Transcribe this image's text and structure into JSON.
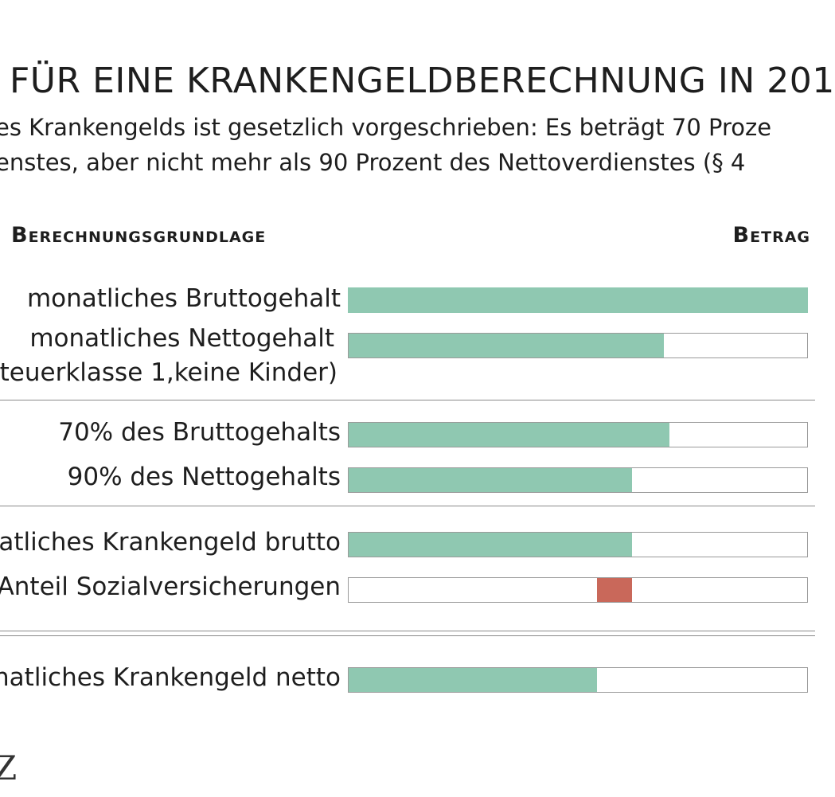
{
  "chart_data": {
    "type": "bar",
    "title": "FÜR EINE KRANKENGELDBERECHNUNG IN 201",
    "subtitle_lines": [
      "es Krankengelds ist gesetzlich vorgeschrieben: Es beträgt 70 Proze",
      "enstes, aber nicht mehr als 90 Prozent des Nettoverdienstes (§ 4"
    ],
    "column_headers": {
      "left": "Berechnungsgrundlage",
      "right": "Betrag"
    },
    "xlim": [
      0,
      100
    ],
    "units": "relative share of monthly gross salary (%)",
    "rows": [
      {
        "label": "monatliches Bruttogehalt",
        "value": 100,
        "color": "#8fc8b1"
      },
      {
        "label": "monatliches Nettogehalt",
        "label2": "teuerklasse 1,keine Kinder)",
        "value": 68.7,
        "color": "#8fc8b1"
      },
      {
        "label": "70% des Bruttogehalts",
        "value": 70,
        "color": "#8fc8b1"
      },
      {
        "label": "90% des Nettogehalts",
        "value": 61.8,
        "color": "#8fc8b1"
      },
      {
        "label": "atliches Krankengeld brutto",
        "value": 61.8,
        "color": "#8fc8b1"
      },
      {
        "label": "Anteil Sozialversicherungen",
        "value": 7.6,
        "offset": 54.2,
        "color": "#c9685a"
      },
      {
        "label": "natliches Krankengeld netto",
        "value": 54.2,
        "color": "#8fc8b1"
      }
    ],
    "logo_text": "Z"
  }
}
